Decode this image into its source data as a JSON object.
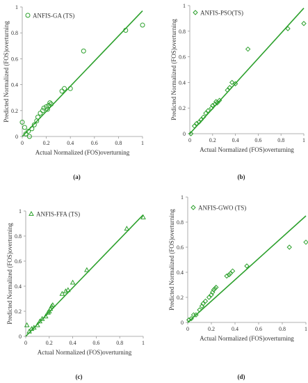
{
  "figure": {
    "marker_color": "#2ca02c",
    "line_color": "#2ca02c"
  },
  "chart_data": [
    {
      "type": "scatter",
      "panel": "a",
      "caption": "(a)",
      "legend": "ANFIS-GA (TS)",
      "marker": "circle",
      "xlabel": "Actual Normalized (FOS)overturning",
      "ylabel": "Predicted Normalized (FOS)overturning",
      "xlim": [
        0,
        1
      ],
      "ylim": [
        0,
        1
      ],
      "xticks": [
        "0",
        "0.2",
        "0.4",
        "0.6",
        "0.8",
        "1"
      ],
      "yticks": [
        "0",
        "0.2",
        "0.4",
        "0.6",
        "0.8",
        "1"
      ],
      "fit_line": {
        "x": [
          0,
          1
        ],
        "y": [
          0.0,
          0.97
        ]
      },
      "points": [
        {
          "x": 0.0,
          "y": 0.11
        },
        {
          "x": 0.02,
          "y": 0.07
        },
        {
          "x": 0.03,
          "y": 0.02
        },
        {
          "x": 0.05,
          "y": 0.04
        },
        {
          "x": 0.06,
          "y": 0.0
        },
        {
          "x": 0.08,
          "y": 0.06
        },
        {
          "x": 0.1,
          "y": 0.09
        },
        {
          "x": 0.12,
          "y": 0.12
        },
        {
          "x": 0.13,
          "y": 0.15
        },
        {
          "x": 0.15,
          "y": 0.18
        },
        {
          "x": 0.17,
          "y": 0.2
        },
        {
          "x": 0.18,
          "y": 0.22
        },
        {
          "x": 0.2,
          "y": 0.23
        },
        {
          "x": 0.21,
          "y": 0.21
        },
        {
          "x": 0.22,
          "y": 0.24
        },
        {
          "x": 0.23,
          "y": 0.26
        },
        {
          "x": 0.24,
          "y": 0.25
        },
        {
          "x": 0.33,
          "y": 0.35
        },
        {
          "x": 0.35,
          "y": 0.37
        },
        {
          "x": 0.4,
          "y": 0.37
        },
        {
          "x": 0.51,
          "y": 0.66
        },
        {
          "x": 0.86,
          "y": 0.82
        },
        {
          "x": 1.0,
          "y": 0.86
        }
      ]
    },
    {
      "type": "scatter",
      "panel": "b",
      "caption": "(b)",
      "legend": "ANFIS-PSO(TS)",
      "marker": "diamond",
      "xlabel": "Actual Normalized (FOS)overturning",
      "ylabel": "Predicted Normalized (FOS)overturning",
      "xlim": [
        0,
        1
      ],
      "ylim": [
        0,
        1
      ],
      "xticks": [
        "0",
        "0.2",
        "0.4",
        "0.6",
        "0.8",
        "1"
      ],
      "yticks": [
        "0",
        "0.2",
        "0.4",
        "0.6",
        "0.8",
        "1"
      ],
      "fit_line": {
        "x": [
          0,
          1
        ],
        "y": [
          0.0,
          0.98
        ]
      },
      "points": [
        {
          "x": 0.01,
          "y": 0.0
        },
        {
          "x": 0.04,
          "y": 0.06
        },
        {
          "x": 0.06,
          "y": 0.08
        },
        {
          "x": 0.08,
          "y": 0.09
        },
        {
          "x": 0.1,
          "y": 0.11
        },
        {
          "x": 0.12,
          "y": 0.13
        },
        {
          "x": 0.14,
          "y": 0.16
        },
        {
          "x": 0.16,
          "y": 0.18
        },
        {
          "x": 0.19,
          "y": 0.2
        },
        {
          "x": 0.2,
          "y": 0.22
        },
        {
          "x": 0.22,
          "y": 0.23
        },
        {
          "x": 0.23,
          "y": 0.25
        },
        {
          "x": 0.24,
          "y": 0.24
        },
        {
          "x": 0.26,
          "y": 0.26
        },
        {
          "x": 0.33,
          "y": 0.34
        },
        {
          "x": 0.35,
          "y": 0.36
        },
        {
          "x": 0.37,
          "y": 0.4
        },
        {
          "x": 0.4,
          "y": 0.39
        },
        {
          "x": 0.51,
          "y": 0.66
        },
        {
          "x": 0.86,
          "y": 0.82
        },
        {
          "x": 1.0,
          "y": 0.86
        }
      ]
    },
    {
      "type": "scatter",
      "panel": "c",
      "caption": "(c)",
      "legend": "ANFIS-FFA (TS)",
      "marker": "triangle",
      "xlabel": "Actual Normalized (FOS)overturning",
      "ylabel": "Predicted Normalized (FOS)overturning",
      "xlim": [
        0,
        1
      ],
      "ylim": [
        0,
        1
      ],
      "xticks": [
        "0",
        "0.2",
        "0.4",
        "0.6",
        "0.8",
        "1"
      ],
      "yticks": [
        "0",
        "0.2",
        "0.4",
        "0.6",
        "0.8",
        "1"
      ],
      "fit_line": {
        "x": [
          0,
          1
        ],
        "y": [
          0.0,
          0.97
        ]
      },
      "points": [
        {
          "x": 0.01,
          "y": 0.09
        },
        {
          "x": 0.03,
          "y": 0.04
        },
        {
          "x": 0.05,
          "y": 0.06
        },
        {
          "x": 0.07,
          "y": 0.07
        },
        {
          "x": 0.1,
          "y": 0.09
        },
        {
          "x": 0.12,
          "y": 0.12
        },
        {
          "x": 0.14,
          "y": 0.14
        },
        {
          "x": 0.17,
          "y": 0.16
        },
        {
          "x": 0.19,
          "y": 0.19
        },
        {
          "x": 0.2,
          "y": 0.2
        },
        {
          "x": 0.21,
          "y": 0.22
        },
        {
          "x": 0.22,
          "y": 0.24
        },
        {
          "x": 0.23,
          "y": 0.25
        },
        {
          "x": 0.31,
          "y": 0.34
        },
        {
          "x": 0.34,
          "y": 0.36
        },
        {
          "x": 0.36,
          "y": 0.37
        },
        {
          "x": 0.4,
          "y": 0.43
        },
        {
          "x": 0.52,
          "y": 0.53
        },
        {
          "x": 0.86,
          "y": 0.86
        },
        {
          "x": 1.0,
          "y": 0.95
        }
      ]
    },
    {
      "type": "scatter",
      "panel": "d",
      "caption": "(d)",
      "legend": "ANFIS-GWO (TS)",
      "marker": "diamond",
      "xlabel": "Actual Normalized (FOS)overturning",
      "ylabel": "Predicted Normalized (FOS)overturning",
      "xlim": [
        0,
        1
      ],
      "ylim": [
        0,
        1
      ],
      "xticks": [
        "0",
        "0.2",
        "0.4",
        "0.6",
        "0.8",
        "1"
      ],
      "yticks": [
        "0",
        "0.2",
        "0.4",
        "0.6",
        "0.8",
        "1"
      ],
      "fit_line": {
        "x": [
          0,
          1
        ],
        "y": [
          0.0,
          0.85
        ]
      },
      "points": [
        {
          "x": 0.01,
          "y": 0.02
        },
        {
          "x": 0.03,
          "y": 0.03
        },
        {
          "x": 0.05,
          "y": 0.06
        },
        {
          "x": 0.07,
          "y": 0.06
        },
        {
          "x": 0.1,
          "y": 0.1
        },
        {
          "x": 0.12,
          "y": 0.13
        },
        {
          "x": 0.13,
          "y": 0.15
        },
        {
          "x": 0.15,
          "y": 0.17
        },
        {
          "x": 0.18,
          "y": 0.2
        },
        {
          "x": 0.2,
          "y": 0.22
        },
        {
          "x": 0.21,
          "y": 0.24
        },
        {
          "x": 0.22,
          "y": 0.26
        },
        {
          "x": 0.23,
          "y": 0.27
        },
        {
          "x": 0.24,
          "y": 0.28
        },
        {
          "x": 0.33,
          "y": 0.37
        },
        {
          "x": 0.35,
          "y": 0.38
        },
        {
          "x": 0.36,
          "y": 0.39
        },
        {
          "x": 0.38,
          "y": 0.41
        },
        {
          "x": 0.5,
          "y": 0.45
        },
        {
          "x": 0.86,
          "y": 0.6
        },
        {
          "x": 1.0,
          "y": 0.64
        }
      ]
    }
  ]
}
